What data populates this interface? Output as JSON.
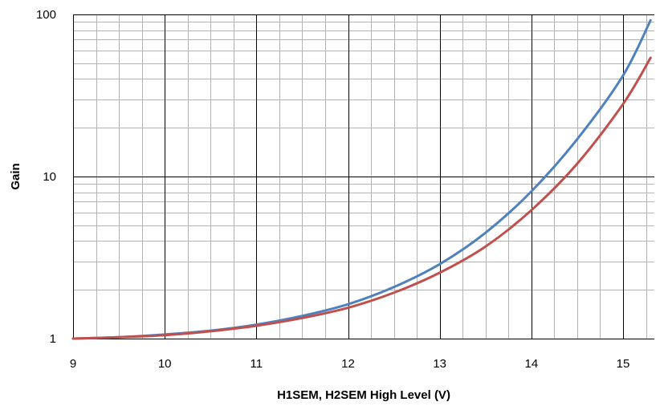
{
  "chart_data": {
    "type": "line",
    "xlabel": "H1SEM, H2SEM High Level (V)",
    "ylabel": "Gain",
    "xlim": [
      9,
      15.3
    ],
    "ylim": [
      1,
      100
    ],
    "yscale": "log",
    "x_ticks": [
      9,
      10,
      11,
      12,
      13,
      14,
      15
    ],
    "x_tick_labels": [
      "9",
      "10",
      "11",
      "12",
      "13",
      "14",
      "15"
    ],
    "y_ticks": [
      1,
      10,
      100
    ],
    "y_tick_labels": [
      "1",
      "10",
      "100"
    ],
    "grid": true,
    "legend": "none",
    "series": [
      {
        "color": "#4f81bd",
        "x": [
          9.0,
          9.5,
          10.0,
          10.5,
          11.0,
          11.5,
          12.0,
          12.5,
          13.0,
          13.5,
          14.0,
          14.5,
          15.0,
          15.3
        ],
        "y": [
          1.0,
          1.02,
          1.06,
          1.12,
          1.22,
          1.38,
          1.63,
          2.08,
          2.88,
          4.5,
          8.1,
          17,
          42,
          92
        ]
      },
      {
        "color": "#c0504d",
        "x": [
          9.0,
          9.5,
          10.0,
          10.5,
          11.0,
          11.5,
          12.0,
          12.5,
          13.0,
          13.5,
          14.0,
          14.5,
          15.0,
          15.3
        ],
        "y": [
          1.0,
          1.02,
          1.05,
          1.11,
          1.2,
          1.34,
          1.55,
          1.92,
          2.55,
          3.7,
          6.2,
          12,
          28,
          54
        ]
      }
    ]
  }
}
